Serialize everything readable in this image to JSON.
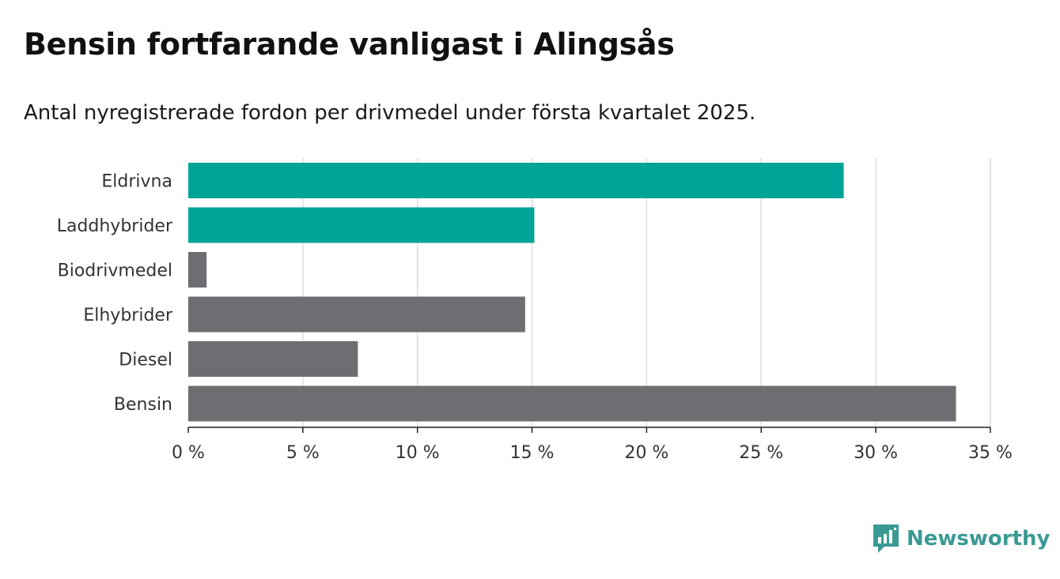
{
  "header": {
    "title": "Bensin fortfarande vanligast i Alingsås",
    "subtitle": "Antal nyregistrerade fordon per drivmedel under första kvartalet 2025."
  },
  "brand": {
    "name": "Newsworthy",
    "icon": "newsworthy-logo-icon",
    "color": "#3a9a93"
  },
  "chart_data": {
    "type": "bar",
    "orientation": "horizontal",
    "categories": [
      "Eldrivna",
      "Laddhybrider",
      "Biodrivmedel",
      "Elhybrider",
      "Diesel",
      "Bensin"
    ],
    "values": [
      28.6,
      15.1,
      0.8,
      14.7,
      7.4,
      33.5
    ],
    "colors": [
      "#00a398",
      "#00a398",
      "#6e6d72",
      "#6e6d72",
      "#6e6d72",
      "#6e6d72"
    ],
    "xlim": [
      0,
      35
    ],
    "x_ticks": [
      0,
      5,
      10,
      15,
      20,
      25,
      30,
      35
    ],
    "x_tick_labels": [
      "0 %",
      "5 %",
      "10 %",
      "15 %",
      "20 %",
      "25 %",
      "30 %",
      "35 %"
    ],
    "grid": "vertical",
    "xlabel": "",
    "ylabel": ""
  }
}
